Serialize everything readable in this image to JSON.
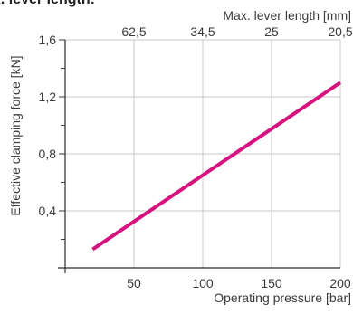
{
  "chart_data": {
    "type": "line",
    "title_partial": "x. lever length:",
    "xlabel": "Operating pressure [bar]",
    "ylabel": "Effective clamping force [kN]",
    "top_axis_label": "Max. lever length [mm]",
    "xlim": [
      0,
      200
    ],
    "ylim": [
      0,
      1.6
    ],
    "x_ticks": [
      50,
      100,
      150,
      200
    ],
    "x_tick_labels": [
      "50",
      "100",
      "150",
      "200"
    ],
    "y_ticks": [
      0.4,
      0.8,
      1.2,
      1.6
    ],
    "y_tick_labels": [
      "0,4",
      "0,8",
      "1,2",
      "1,6"
    ],
    "top_ticks": [
      50,
      100,
      150,
      200
    ],
    "top_tick_labels": [
      "62,5",
      "34,5",
      "25",
      "20,5"
    ],
    "grid": true,
    "line_color": "#d6127f",
    "series": [
      {
        "x": [
          20,
          200
        ],
        "y": [
          0.13,
          1.3
        ]
      }
    ]
  }
}
